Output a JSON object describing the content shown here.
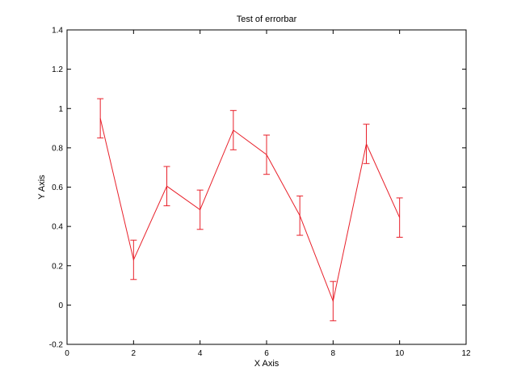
{
  "chart_data": {
    "type": "line",
    "title": "Test of errorbar",
    "xlabel": "X Axis",
    "ylabel": "Y Axis",
    "xlim": [
      0,
      12
    ],
    "ylim": [
      -0.2,
      1.4
    ],
    "x_ticks": [
      0,
      2,
      4,
      6,
      8,
      10,
      12
    ],
    "y_ticks": [
      -0.2,
      0,
      0.2,
      0.4,
      0.6,
      0.8,
      1,
      1.2,
      1.4
    ],
    "x_tick_labels": [
      "0",
      "2",
      "4",
      "6",
      "8",
      "10",
      "12"
    ],
    "y_tick_labels": [
      "-0.2",
      "0",
      "0.2",
      "0.4",
      "0.6",
      "0.8",
      "1",
      "1.2",
      "1.4"
    ],
    "grid": false,
    "series": [
      {
        "x": [
          1,
          2,
          3,
          4,
          5,
          6,
          7,
          8,
          9,
          10
        ],
        "y": [
          0.95,
          0.23,
          0.605,
          0.485,
          0.89,
          0.765,
          0.455,
          0.02,
          0.82,
          0.445
        ],
        "error": [
          0.1,
          0.1,
          0.1,
          0.1,
          0.1,
          0.1,
          0.1,
          0.1,
          0.1,
          0.1
        ],
        "color": "#e8202a"
      }
    ]
  }
}
